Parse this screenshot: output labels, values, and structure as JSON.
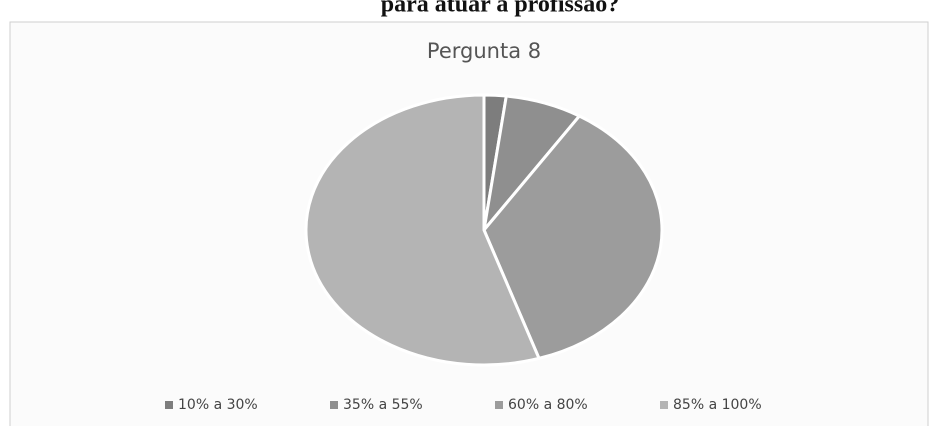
{
  "page_title": "para atuar a profissão?",
  "chart_data": {
    "type": "pie",
    "title": "Pergunta 8",
    "categories": [
      "10% a 30%",
      "35% a 55%",
      "60% a 80%",
      "85% a 100%"
    ],
    "values": [
      2,
      7,
      36,
      55
    ],
    "colors": [
      "#7d7d7d",
      "#8f8f8f",
      "#9c9c9c",
      "#b4b4b4"
    ],
    "legend": "bottom"
  }
}
